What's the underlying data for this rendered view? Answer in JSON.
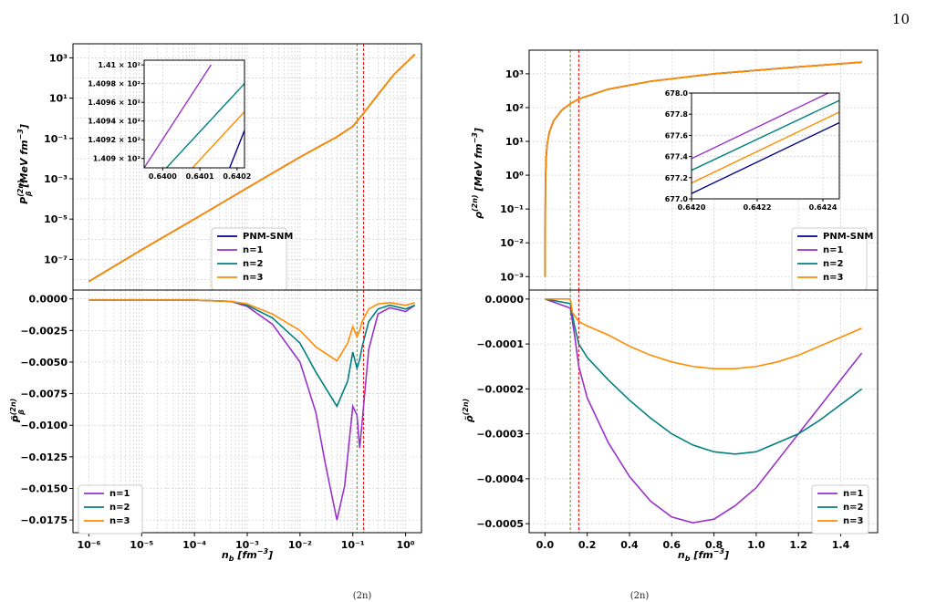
{
  "page_number": "10",
  "colors": {
    "PNM-SNM": "#00008b",
    "n=1": "#9932cc",
    "n=2": "#008080",
    "n=3": "#ff8c00",
    "vline_green": "#6b8e23",
    "vline_red": "#ff0000"
  },
  "caption_fragments": [
    "(2n)",
    "(2n)"
  ],
  "chart_data": [
    {
      "id": "left-top",
      "type": "line",
      "xscale": "log",
      "yscale": "log",
      "xlim": [
        5e-07,
        2
      ],
      "ylim": [
        3e-09,
        5000
      ],
      "ylabel_main": "P",
      "ylabel_sub": "β",
      "ylabel_sup": "(2n)",
      "ylabel_unit": "[MeV fm",
      "yticks": [
        "10⁻⁷",
        "10⁻⁵",
        "10⁻³",
        "10⁻¹",
        "10¹",
        "10³"
      ],
      "vlines": [
        0.12,
        0.16
      ],
      "legend": [
        "PNM-SNM",
        "n=1",
        "n=2",
        "n=3"
      ],
      "legend_position": "lower-right",
      "x": [
        1e-06,
        1e-05,
        0.0001,
        0.001,
        0.01,
        0.05,
        0.1,
        0.16,
        0.3,
        0.6,
        1.5
      ],
      "y": [
        8e-09,
        3e-07,
        1e-05,
        0.00035,
        0.012,
        0.12,
        0.4,
        1.8,
        15,
        150,
        1500
      ],
      "inset": {
        "xlim": [
          0.63995,
          0.64022
        ],
        "ylim": [
          140.89,
          141.005
        ],
        "xticks": [
          "0.6400",
          "0.6401",
          "0.6402"
        ],
        "yticks": [
          "1.409 × 10²",
          "1.4092 × 10²",
          "1.4094 × 10²",
          "1.4096 × 10²",
          "1.4098 × 10²",
          "1.41 × 10²"
        ],
        "series": [
          {
            "name": "PNM-SNM",
            "x": [
              0.64018,
              0.64022
            ],
            "y": [
              140.89,
              140.93
            ]
          },
          {
            "name": "n=1",
            "x": [
              0.63995,
              0.64013
            ],
            "y": [
              140.89,
              141.0
            ]
          },
          {
            "name": "n=2",
            "x": [
              0.64001,
              0.64022
            ],
            "y": [
              140.89,
              140.98
            ]
          },
          {
            "name": "n=3",
            "x": [
              0.64008,
              0.64022
            ],
            "y": [
              140.89,
              140.95
            ]
          }
        ]
      }
    },
    {
      "id": "left-bottom",
      "type": "line",
      "xscale": "log",
      "xlim": [
        5e-07,
        2
      ],
      "ylim": [
        -0.0185,
        0.0007
      ],
      "xlabel_main": "n",
      "xlabel_sub": "b",
      "xlabel_unit": "[fm",
      "ylabel_main": "P̃",
      "ylabel_sub": "β",
      "ylabel_sup": "(2n)",
      "xticks": [
        "10⁻⁶",
        "10⁻⁵",
        "10⁻⁴",
        "10⁻³",
        "10⁻²",
        "10⁻¹",
        "10⁰"
      ],
      "yticks": [
        "0.0000",
        "−0.0025",
        "−0.0050",
        "−0.0075",
        "−0.0100",
        "−0.0125",
        "−0.0150",
        "−0.0175"
      ],
      "vlines": [
        0.12,
        0.16
      ],
      "legend": [
        "n=1",
        "n=2",
        "n=3"
      ],
      "legend_position": "lower-left",
      "series": [
        {
          "name": "n=1",
          "x": [
            1e-06,
            0.0001,
            0.0005,
            0.001,
            0.003,
            0.01,
            0.02,
            0.03,
            0.05,
            0.07,
            0.1,
            0.12,
            0.135,
            0.15,
            0.2,
            0.3,
            0.5,
            1.0,
            1.5
          ],
          "y": [
            -0.0001,
            -0.0001,
            -0.0002,
            -0.0006,
            -0.002,
            -0.005,
            -0.009,
            -0.013,
            -0.0175,
            -0.0148,
            -0.0085,
            -0.0092,
            -0.0118,
            -0.0098,
            -0.004,
            -0.0012,
            -0.0007,
            -0.001,
            -0.0005
          ]
        },
        {
          "name": "n=2",
          "x": [
            1e-06,
            0.0001,
            0.0005,
            0.001,
            0.003,
            0.01,
            0.02,
            0.05,
            0.08,
            0.1,
            0.12,
            0.135,
            0.15,
            0.2,
            0.3,
            0.5,
            1.0,
            1.5
          ],
          "y": [
            -0.0001,
            -0.0001,
            -0.0002,
            -0.0005,
            -0.0015,
            -0.0035,
            -0.0058,
            -0.0085,
            -0.0065,
            -0.0042,
            -0.0055,
            -0.0048,
            -0.0038,
            -0.0018,
            -0.0008,
            -0.0005,
            -0.0008,
            -0.0005
          ]
        },
        {
          "name": "n=3",
          "x": [
            1e-06,
            0.0001,
            0.0005,
            0.001,
            0.003,
            0.01,
            0.02,
            0.05,
            0.08,
            0.1,
            0.12,
            0.135,
            0.15,
            0.2,
            0.3,
            0.5,
            1.0,
            1.5
          ],
          "y": [
            -0.0001,
            -0.0001,
            -0.0002,
            -0.0004,
            -0.0012,
            -0.0025,
            -0.0038,
            -0.0049,
            -0.0035,
            -0.0022,
            -0.003,
            -0.0025,
            -0.0018,
            -0.0008,
            -0.0004,
            -0.0003,
            -0.0005,
            -0.0003
          ]
        }
      ]
    },
    {
      "id": "right-top",
      "type": "line",
      "yscale": "log",
      "xlim": [
        -0.075,
        1.575
      ],
      "ylim": [
        0.0004,
        5000
      ],
      "ylabel_main": "ρ",
      "ylabel_sup": "(2n)",
      "ylabel_unit": "[MeV fm",
      "yticks": [
        "10⁻³",
        "10⁻²",
        "10⁻¹",
        "10⁰",
        "10¹",
        "10²",
        "10³"
      ],
      "vlines": [
        0.12,
        0.16
      ],
      "legend": [
        "PNM-SNM",
        "n=1",
        "n=2",
        "n=3"
      ],
      "legend_position": "lower-right",
      "x": [
        0.0005,
        0.002,
        0.005,
        0.01,
        0.02,
        0.04,
        0.08,
        0.12,
        0.16,
        0.3,
        0.5,
        0.8,
        1.2,
        1.5
      ],
      "y": [
        0.001,
        0.5,
        3,
        8,
        18,
        40,
        85,
        130,
        180,
        350,
        600,
        1000,
        1600,
        2200
      ],
      "inset": {
        "xlim": [
          0.642,
          0.64245
        ],
        "ylim": [
          677.0,
          678.0
        ],
        "xticks": [
          "0.6420",
          "0.6422",
          "0.6424"
        ],
        "yticks": [
          "677.0",
          "677.2",
          "677.4",
          "677.6",
          "677.8",
          "678.0"
        ],
        "series": [
          {
            "name": "PNM-SNM",
            "x": [
              0.642,
              0.64245
            ],
            "y": [
              677.05,
              677.72
            ]
          },
          {
            "name": "n=1",
            "x": [
              0.642,
              0.64245
            ],
            "y": [
              677.38,
              678.05
            ]
          },
          {
            "name": "n=2",
            "x": [
              0.642,
              0.64245
            ],
            "y": [
              677.27,
              677.93
            ]
          },
          {
            "name": "n=3",
            "x": [
              0.642,
              0.64245
            ],
            "y": [
              677.15,
              677.82
            ]
          }
        ]
      }
    },
    {
      "id": "right-bottom",
      "type": "line",
      "xlim": [
        -0.075,
        1.575
      ],
      "ylim": [
        -0.00052,
        2e-05
      ],
      "xlabel_main": "n",
      "xlabel_sub": "b",
      "xlabel_unit": "[fm",
      "ylabel_main": "ρ̃",
      "ylabel_sup": "(2n)",
      "xticks": [
        "0.0",
        "0.2",
        "0.4",
        "0.6",
        "0.8",
        "1.0",
        "1.2",
        "1.4"
      ],
      "yticks": [
        "0.0000",
        "−0.0001",
        "−0.0002",
        "−0.0003",
        "−0.0004",
        "−0.0005"
      ],
      "vlines": [
        0.12,
        0.16
      ],
      "legend": [
        "n=1",
        "n=2",
        "n=3"
      ],
      "legend_position": "lower-right",
      "series": [
        {
          "name": "n=1",
          "x": [
            0,
            0.12,
            0.14,
            0.16,
            0.2,
            0.3,
            0.4,
            0.5,
            0.6,
            0.7,
            0.8,
            0.9,
            1.0,
            1.1,
            1.2,
            1.3,
            1.4,
            1.5
          ],
          "y": [
            0,
            -2e-05,
            -8e-05,
            -0.00015,
            -0.00022,
            -0.00032,
            -0.000395,
            -0.00045,
            -0.000485,
            -0.000498,
            -0.00049,
            -0.00046,
            -0.00042,
            -0.00036,
            -0.0003,
            -0.00024,
            -0.00018,
            -0.00012
          ]
        },
        {
          "name": "n=2",
          "x": [
            0,
            0.12,
            0.14,
            0.16,
            0.2,
            0.3,
            0.4,
            0.5,
            0.6,
            0.7,
            0.8,
            0.9,
            1.0,
            1.1,
            1.2,
            1.3,
            1.4,
            1.5
          ],
          "y": [
            0,
            -1e-05,
            -6e-05,
            -0.0001,
            -0.00013,
            -0.00018,
            -0.000225,
            -0.000265,
            -0.0003,
            -0.000325,
            -0.00034,
            -0.000345,
            -0.00034,
            -0.00032,
            -0.0003,
            -0.00027,
            -0.000235,
            -0.0002
          ]
        },
        {
          "name": "n=3",
          "x": [
            0,
            0.12,
            0.13,
            0.16,
            0.2,
            0.3,
            0.4,
            0.5,
            0.6,
            0.7,
            0.8,
            0.9,
            1.0,
            1.1,
            1.2,
            1.3,
            1.4,
            1.5
          ],
          "y": [
            0,
            0,
            -3e-05,
            -5e-05,
            -6e-05,
            -8e-05,
            -0.000105,
            -0.000125,
            -0.00014,
            -0.00015,
            -0.000155,
            -0.000155,
            -0.00015,
            -0.00014,
            -0.000125,
            -0.000105,
            -8.5e-05,
            -6.5e-05
          ]
        }
      ]
    }
  ]
}
